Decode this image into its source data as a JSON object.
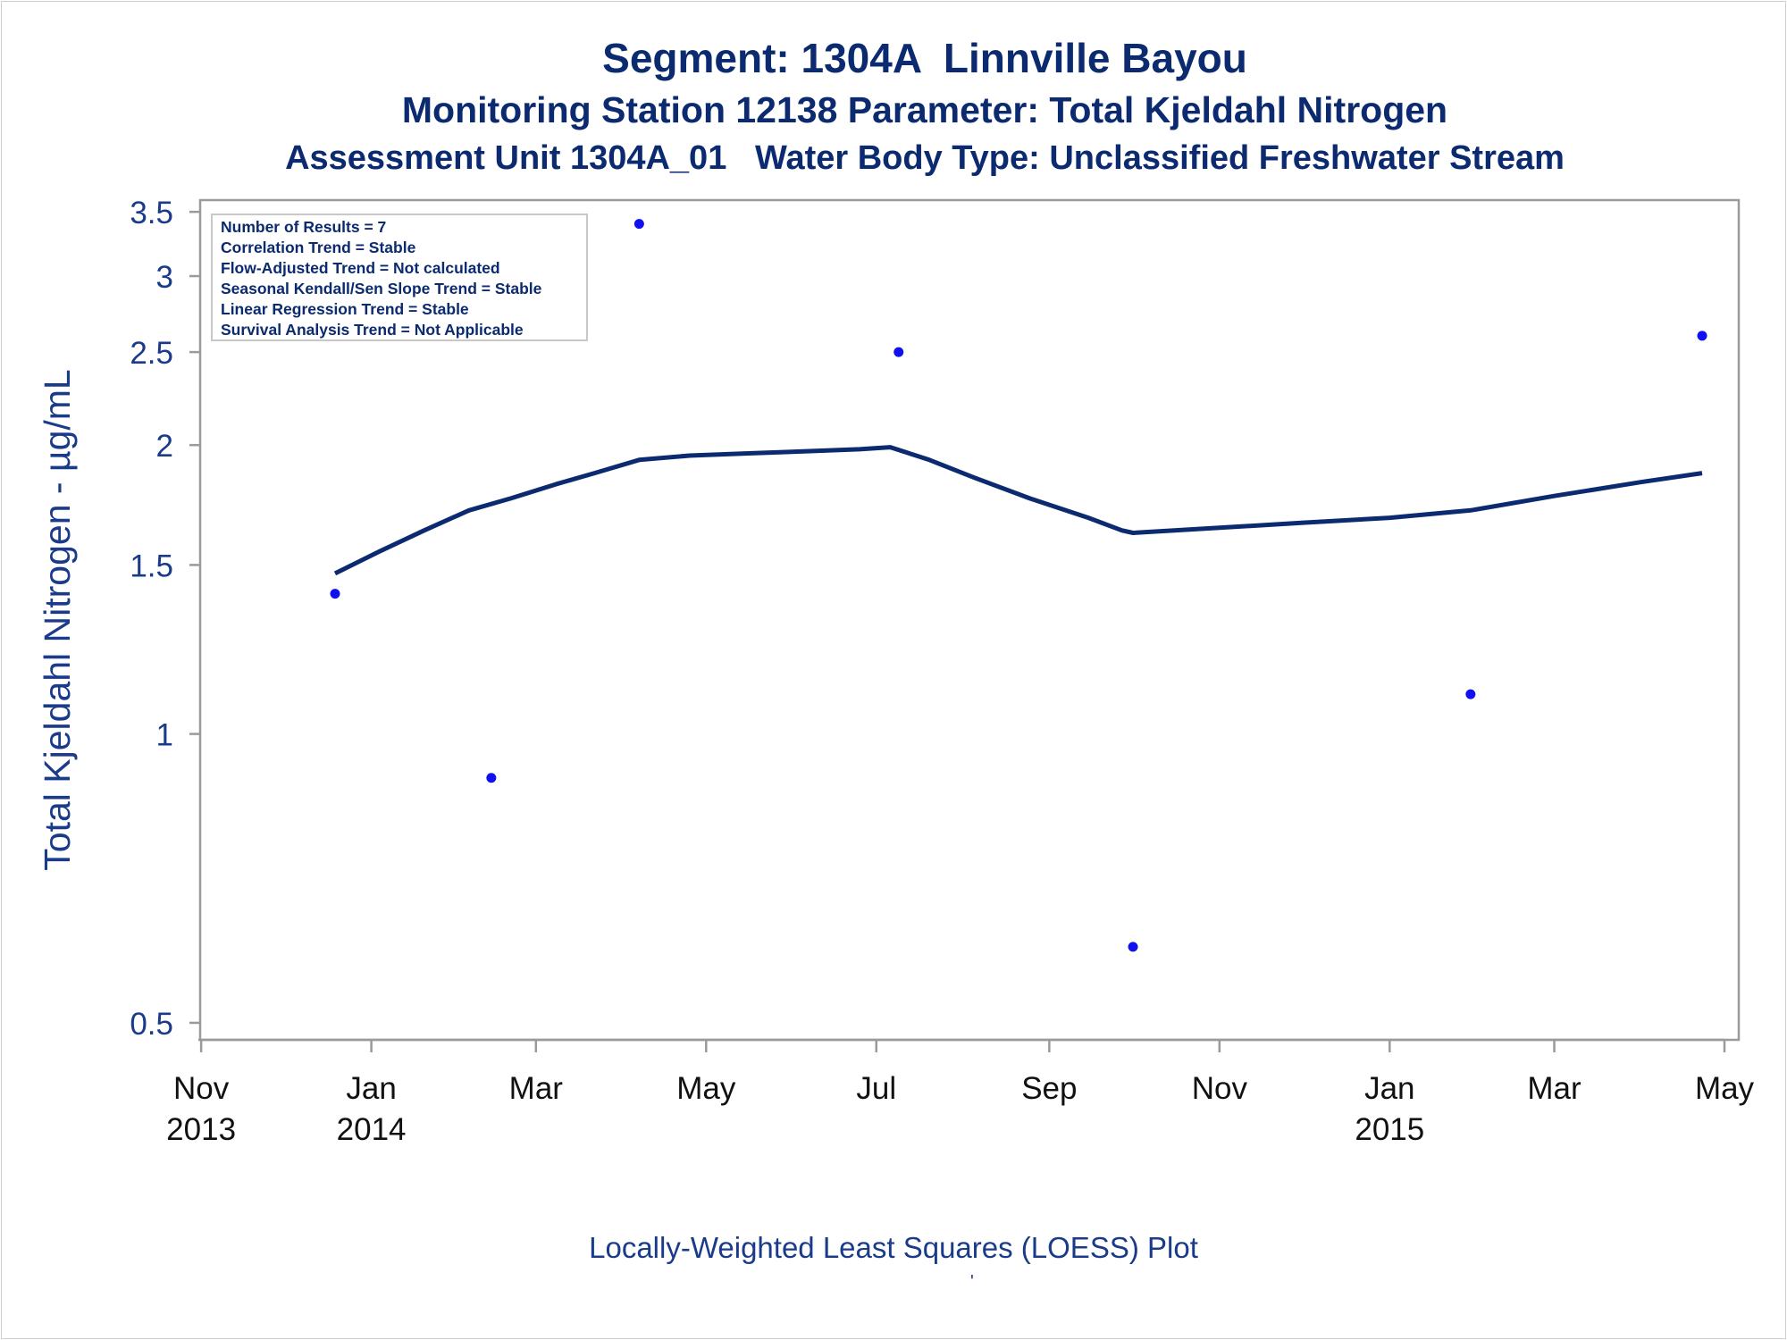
{
  "title": {
    "line1": "Segment: 1304A  Linnville Bayou",
    "line2": "Monitoring Station 12138 Parameter: Total Kjeldahl Nitrogen",
    "line3": "Assessment Unit 1304A_01   Water Body Type: Unclassified Freshwater Stream"
  },
  "footnote": "Locally-Weighted Least Squares (LOESS) Plot",
  "footnote_mark": "'",
  "colors": {
    "title": "#0b2a6f",
    "axis_text": "#1a3a8a",
    "points": "#1010f0",
    "loess": "#0b2a6f",
    "frame": "#9a9a9a"
  },
  "info_box": [
    "Number of Results = 7",
    "Correlation Trend = Stable",
    "Flow-Adjusted Trend = Not calculated",
    "Seasonal Kendall/Sen Slope Trend = Stable",
    "Linear Regression Trend = Stable",
    "Survival Analysis Trend = Not Applicable"
  ],
  "chart_data": {
    "type": "scatter",
    "ylabel": "Total Kjeldahl Nitrogen -  µg/mL",
    "yscale": "log",
    "ylim": [
      0.48,
      3.6
    ],
    "xlim": [
      "2013-10-31",
      "2015-05-01"
    ],
    "yticks": [
      {
        "value": 0.5,
        "label": "0.5"
      },
      {
        "value": 1,
        "label": "1"
      },
      {
        "value": 1.5,
        "label": "1.5"
      },
      {
        "value": 2,
        "label": "2"
      },
      {
        "value": 2.5,
        "label": "2.5"
      },
      {
        "value": 3,
        "label": "3"
      },
      {
        "value": 3.5,
        "label": "3.5"
      }
    ],
    "xticks": [
      {
        "date": "2013-11-01",
        "label": "Nov",
        "year": "2013"
      },
      {
        "date": "2014-01-01",
        "label": "Jan",
        "year": "2014"
      },
      {
        "date": "2014-03-01",
        "label": "Mar",
        "year": ""
      },
      {
        "date": "2014-05-01",
        "label": "May",
        "year": ""
      },
      {
        "date": "2014-07-01",
        "label": "Jul",
        "year": ""
      },
      {
        "date": "2014-09-01",
        "label": "Sep",
        "year": ""
      },
      {
        "date": "2014-11-01",
        "label": "Nov",
        "year": ""
      },
      {
        "date": "2015-01-01",
        "label": "Jan",
        "year": "2015"
      },
      {
        "date": "2015-03-01",
        "label": "Mar",
        "year": ""
      },
      {
        "date": "2015-05-01",
        "label": "May",
        "year": ""
      }
    ],
    "series": [
      {
        "type": "scatter",
        "points": [
          {
            "x": "2013-12-19",
            "y": 1.4
          },
          {
            "x": "2014-02-13",
            "y": 0.9
          },
          {
            "x": "2014-04-07",
            "y": 3.4
          },
          {
            "x": "2014-07-09",
            "y": 2.5
          },
          {
            "x": "2014-10-01",
            "y": 0.6
          },
          {
            "x": "2015-01-30",
            "y": 1.1
          },
          {
            "x": "2015-04-23",
            "y": 2.6
          }
        ]
      },
      {
        "type": "line",
        "points": [
          {
            "x": "2013-12-19",
            "y": 1.47
          },
          {
            "x": "2014-01-04",
            "y": 1.55
          },
          {
            "x": "2014-01-20",
            "y": 1.63
          },
          {
            "x": "2014-02-05",
            "y": 1.71
          },
          {
            "x": "2014-02-20",
            "y": 1.76
          },
          {
            "x": "2014-03-08",
            "y": 1.82
          },
          {
            "x": "2014-03-22",
            "y": 1.87
          },
          {
            "x": "2014-04-07",
            "y": 1.93
          },
          {
            "x": "2014-04-25",
            "y": 1.95
          },
          {
            "x": "2014-05-15",
            "y": 1.96
          },
          {
            "x": "2014-06-05",
            "y": 1.97
          },
          {
            "x": "2014-06-25",
            "y": 1.98
          },
          {
            "x": "2014-07-06",
            "y": 1.99
          },
          {
            "x": "2014-07-20",
            "y": 1.93
          },
          {
            "x": "2014-08-05",
            "y": 1.85
          },
          {
            "x": "2014-08-25",
            "y": 1.76
          },
          {
            "x": "2014-09-15",
            "y": 1.68
          },
          {
            "x": "2014-09-27",
            "y": 1.63
          },
          {
            "x": "2014-10-01",
            "y": 1.62
          },
          {
            "x": "2014-11-01",
            "y": 1.64
          },
          {
            "x": "2014-12-01",
            "y": 1.66
          },
          {
            "x": "2015-01-01",
            "y": 1.68
          },
          {
            "x": "2015-01-30",
            "y": 1.71
          },
          {
            "x": "2015-03-01",
            "y": 1.77
          },
          {
            "x": "2015-04-01",
            "y": 1.83
          },
          {
            "x": "2015-04-23",
            "y": 1.87
          }
        ]
      }
    ]
  }
}
